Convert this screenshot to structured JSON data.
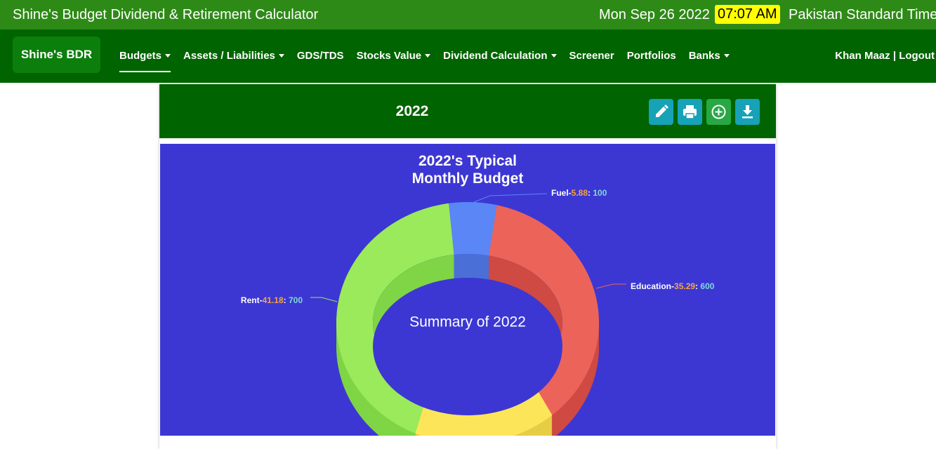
{
  "header": {
    "title": "Shine's Budget Dividend & Retirement Calculator",
    "date": "Mon Sep 26 2022",
    "time": "07:07 AM",
    "timezone": "Pakistan Standard Time"
  },
  "nav": {
    "brand": "Shine's BDR",
    "items": [
      {
        "label": "Budgets",
        "dropdown": true,
        "active": true
      },
      {
        "label": "Assets / Liabilities",
        "dropdown": true
      },
      {
        "label": "GDS/TDS",
        "dropdown": false
      },
      {
        "label": "Stocks Value",
        "dropdown": true
      },
      {
        "label": "Dividend Calculation",
        "dropdown": true
      },
      {
        "label": "Screener",
        "dropdown": false
      },
      {
        "label": "Portfolios",
        "dropdown": false
      },
      {
        "label": "Banks",
        "dropdown": true
      }
    ],
    "user": "Khan Maaz",
    "separator": "|",
    "logout": "Logout"
  },
  "card": {
    "title": "2022"
  },
  "chart_data": {
    "type": "donut3d",
    "title": "2022's Typical Monthly Budget",
    "center_text": "Summary of 2022",
    "categories": [
      "Fuel",
      "Education",
      null,
      "Rent"
    ],
    "values": [
      100,
      600,
      300,
      700
    ],
    "percentages": [
      5.88,
      35.29,
      null,
      41.18
    ],
    "label_separators": [
      "-",
      ": "
    ],
    "colors": [
      "#5b86f5",
      "#ec6459",
      "#fde55a",
      "#9bea5b"
    ],
    "side_colors": [
      "#4a70d8",
      "#cf4a42",
      "#e6cd45",
      "#7fd545"
    ],
    "background": "#3c37d3"
  }
}
